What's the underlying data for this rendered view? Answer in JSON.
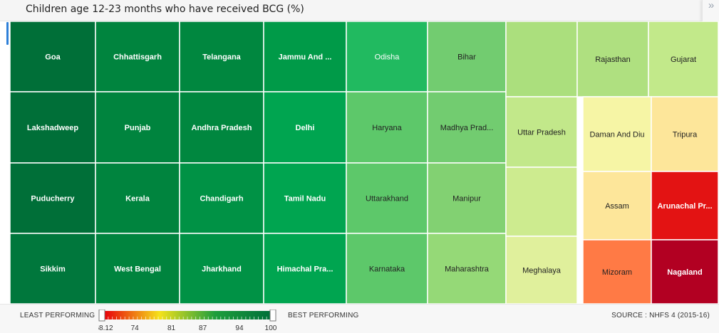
{
  "header": {
    "title": "Children age 12-23 months who have received BCG (%)",
    "collapse_icon": "»"
  },
  "legend": {
    "least_label": "LEAST PERFORMING",
    "best_label": "BEST PERFORMING",
    "source": "SOURCE : NHFS 4 (2015-16)",
    "ticks": [
      "68.12",
      "74",
      "81",
      "87",
      "94",
      "100"
    ],
    "min": 68.12,
    "max": 100,
    "gradient_colors": [
      "#e8000b",
      "#f5e21b",
      "#1e9e3c",
      "#00703a"
    ]
  },
  "chart_data": {
    "type": "treemap",
    "title": "Children age 12-23 months who have received BCG (%)",
    "columns": [
      {
        "cells": [
          {
            "label": "Goa",
            "color": "#006f38"
          },
          {
            "label": "Lakshadweep",
            "color": "#006f38"
          },
          {
            "label": "Puducherry",
            "color": "#006f38"
          },
          {
            "label": "Sikkim",
            "color": "#00773c"
          }
        ]
      },
      {
        "cells": [
          {
            "label": "Chhattisgarh",
            "color": "#00843e"
          },
          {
            "label": "Punjab",
            "color": "#00843e"
          },
          {
            "label": "Kerala",
            "color": "#00843e"
          },
          {
            "label": "West Bengal",
            "color": "#00843e"
          }
        ]
      },
      {
        "cells": [
          {
            "label": "Telangana",
            "color": "#00873f"
          },
          {
            "label": "Andhra Pradesh",
            "color": "#00873f"
          },
          {
            "label": "Chandigarh",
            "color": "#009245"
          },
          {
            "label": "Jharkhand",
            "color": "#009245"
          }
        ]
      },
      {
        "cells": [
          {
            "label": "Jammu And ...",
            "color": "#009a48"
          },
          {
            "label": "Delhi",
            "color": "#00a550"
          },
          {
            "label": "Tamil Nadu",
            "color": "#00a550"
          },
          {
            "label": "Himachal Pra...",
            "color": "#00a550"
          }
        ]
      },
      {
        "cells": [
          {
            "label": "Odisha",
            "color": "#21ba60"
          },
          {
            "label": "Haryana",
            "color": "#5dc86a"
          },
          {
            "label": "Uttarakhand",
            "color": "#5dc86a"
          },
          {
            "label": "Karnataka",
            "color": "#5dc86a"
          }
        ]
      },
      {
        "cells": [
          {
            "label": "Bihar",
            "color": "#72cc70"
          },
          {
            "label": "Madhya Prad...",
            "color": "#72cc70"
          },
          {
            "label": "Manipur",
            "color": "#82d172"
          },
          {
            "label": "Maharashtra",
            "color": "#95d977"
          }
        ]
      },
      {
        "cells": [
          {
            "label": "",
            "color": "#abdf7d"
          },
          {
            "label": "Uttar Pradesh",
            "color": "#c2e88a"
          },
          {
            "label": "",
            "color": "#cdeb8f"
          },
          {
            "label": "Meghalaya",
            "color": "#e0f09c"
          }
        ]
      },
      {
        "cells": [
          {
            "label": "Rajasthan",
            "color": "#afe080"
          },
          {
            "label": "Gujarat",
            "color": "#c2e98a"
          },
          {
            "label": "Daman And Diu",
            "color": "#f6f5a5"
          },
          {
            "label": "Tripura",
            "color": "#fde69a"
          },
          {
            "label": "Assam",
            "color": "#fde69a"
          },
          {
            "label": "Arunachal Pr...",
            "color": "#e31313"
          },
          {
            "label": "Mizoram",
            "color": "#ff7a45"
          },
          {
            "label": "Nagaland",
            "color": "#b20022"
          }
        ]
      }
    ]
  }
}
